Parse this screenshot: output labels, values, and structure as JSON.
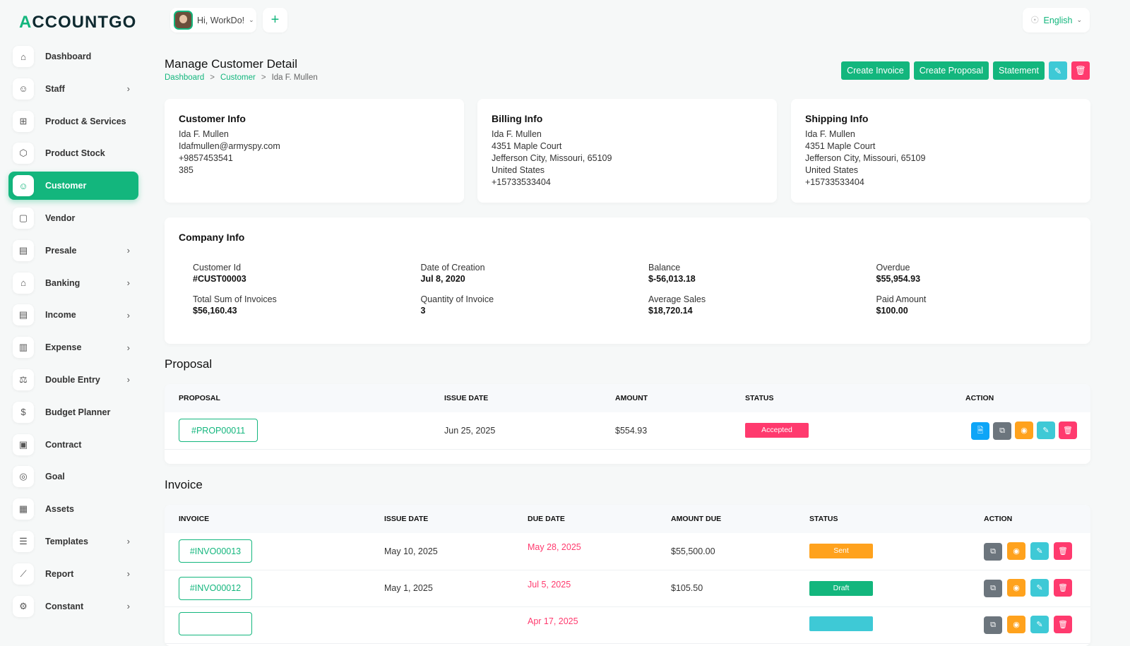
{
  "app": {
    "logo": "ACCOUNTGO",
    "user_greeting": "Hi, WorkDo!",
    "language": "English"
  },
  "colors": {
    "primary": "#13b67d",
    "danger": "#ff3a6e",
    "info": "#3ec9d6",
    "warning": "#ffa21d",
    "secondary": "#6c757d",
    "blue": "#0ea5f7"
  },
  "sidebar": {
    "items": [
      {
        "label": "Dashboard",
        "icon": "home-icon",
        "chev": false
      },
      {
        "label": "Staff",
        "icon": "users-icon",
        "chev": true
      },
      {
        "label": "Product & Services",
        "icon": "cart-icon",
        "chev": false
      },
      {
        "label": "Product Stock",
        "icon": "box-icon",
        "chev": false
      },
      {
        "label": "Customer",
        "icon": "user-plus-icon",
        "chev": false,
        "active": true
      },
      {
        "label": "Vendor",
        "icon": "note-icon",
        "chev": false
      },
      {
        "label": "Presale",
        "icon": "file-lock-icon",
        "chev": true
      },
      {
        "label": "Banking",
        "icon": "bank-icon",
        "chev": true
      },
      {
        "label": "Income",
        "icon": "file-icon",
        "chev": true
      },
      {
        "label": "Expense",
        "icon": "receipt-icon",
        "chev": true
      },
      {
        "label": "Double Entry",
        "icon": "scale-icon",
        "chev": true
      },
      {
        "label": "Budget Planner",
        "icon": "coins-icon",
        "chev": false
      },
      {
        "label": "Contract",
        "icon": "contract-icon",
        "chev": false
      },
      {
        "label": "Goal",
        "icon": "target-icon",
        "chev": false
      },
      {
        "label": "Assets",
        "icon": "calculator-icon",
        "chev": false
      },
      {
        "label": "Templates",
        "icon": "template-icon",
        "chev": true
      },
      {
        "label": "Report",
        "icon": "chart-icon",
        "chev": true
      },
      {
        "label": "Constant",
        "icon": "settings-icon",
        "chev": true
      }
    ]
  },
  "page": {
    "title": "Manage Customer Detail",
    "breadcrumb": [
      "Dashboard",
      "Customer",
      "Ida F. Mullen"
    ],
    "buttons": {
      "create_invoice": "Create Invoice",
      "create_proposal": "Create Proposal",
      "statement": "Statement"
    }
  },
  "customer_info": {
    "title": "Customer Info",
    "lines": [
      "Ida F. Mullen",
      "Idafmullen@armyspy.com",
      "+9857453541",
      "385"
    ]
  },
  "billing_info": {
    "title": "Billing Info",
    "lines": [
      "Ida F. Mullen",
      "4351 Maple Court",
      "Jefferson City, Missouri, 65109",
      "United States",
      "+15733533404"
    ]
  },
  "shipping_info": {
    "title": "Shipping Info",
    "lines": [
      "Ida F. Mullen",
      "4351 Maple Court",
      "Jefferson City, Missouri, 65109",
      "United States",
      "+15733533404"
    ]
  },
  "company_info": {
    "title": "Company Info",
    "fields": [
      {
        "label": "Customer Id",
        "value": "#CUST00003"
      },
      {
        "label": "Date of Creation",
        "value": "Jul 8, 2020"
      },
      {
        "label": "Balance",
        "value": "$-56,013.18"
      },
      {
        "label": "Overdue",
        "value": "$55,954.93"
      },
      {
        "label": "Total Sum of Invoices",
        "value": "$56,160.43"
      },
      {
        "label": "Quantity of Invoice",
        "value": "3"
      },
      {
        "label": "Average Sales",
        "value": "$18,720.14"
      },
      {
        "label": "Paid Amount",
        "value": "$100.00"
      }
    ]
  },
  "proposal": {
    "title": "Proposal",
    "headers": [
      "PROPOSAL",
      "ISSUE DATE",
      "AMOUNT",
      "STATUS",
      "ACTION"
    ],
    "rows": [
      {
        "id": "#PROP00011",
        "issue_date": "Jun 25, 2025",
        "amount": "$554.93",
        "status": "Accepted"
      }
    ]
  },
  "invoice": {
    "title": "Invoice",
    "headers": [
      "INVOICE",
      "ISSUE DATE",
      "DUE DATE",
      "AMOUNT DUE",
      "STATUS",
      "ACTION"
    ],
    "rows": [
      {
        "id": "#INVO00013",
        "issue_date": "May 10, 2025",
        "due_date": "May 28, 2025",
        "amount_due": "$55,500.00",
        "status": "Sent",
        "status_color": "#ffa21d"
      },
      {
        "id": "#INVO00012",
        "issue_date": "May 1, 2025",
        "due_date": "Jul 5, 2025",
        "amount_due": "$105.50",
        "status": "Draft",
        "status_color": "#13b67d"
      },
      {
        "id": "",
        "issue_date": "",
        "due_date": "Apr 17, 2025",
        "amount_due": "",
        "status": "",
        "status_color": "#3ec9d6"
      }
    ]
  }
}
